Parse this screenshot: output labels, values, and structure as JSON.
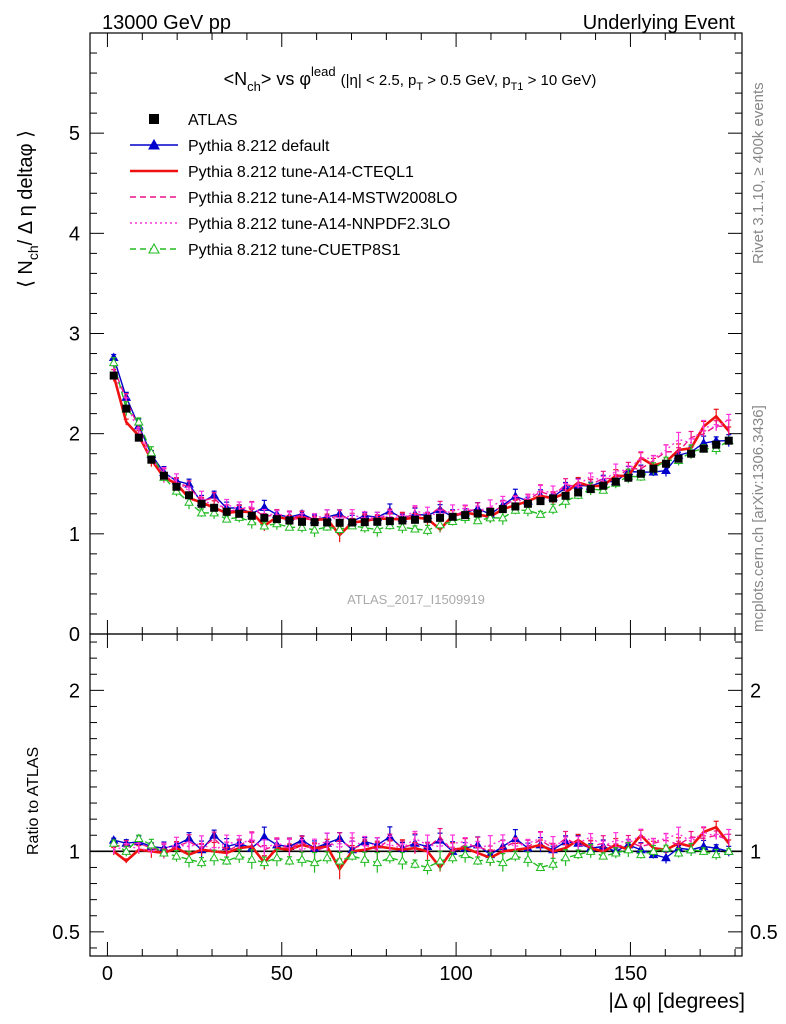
{
  "header": {
    "left": "13000 GeV pp",
    "right": "Underlying Event"
  },
  "side_text": {
    "rivet": "Rivet 3.1.10, ≥ 400k events",
    "mcplots": "mcplots.cern.ch [arXiv:1306.3436]"
  },
  "chart_data": [
    {
      "type": "line",
      "title": "<N_ch> vs φ^lead (|η| < 2.5, p_T > 0.5 GeV, p_T1 > 10 GeV)",
      "title_parts": {
        "main_a": "<N",
        "main_sub": "ch",
        "main_b": "> vs φ",
        "main_sup": "lead",
        "cuts_a": "(|η| < 2.5, p",
        "cuts_sub1": "T",
        "cuts_b": " > 0.5 GeV, p",
        "cuts_sub2": "T1",
        "cuts_c": " > 10 GeV)"
      },
      "ylabel": "⟨ N_ch / Δη deltaφ ⟩",
      "ylabel_parts": {
        "a": "⟨ N",
        "sub": "ch",
        "b": "/ Δ η deltaφ ⟩"
      },
      "watermark": "ATLAS_2017_I1509919",
      "xlim": [
        -5,
        182
      ],
      "ylim": [
        0,
        6
      ],
      "yticks": [
        0,
        1,
        2,
        3,
        4,
        5
      ],
      "legend_position": "top-left",
      "series": [
        {
          "name": "ATLAS",
          "color": "#000000",
          "style": "markers-square"
        },
        {
          "name": "Pythia 8.212 default",
          "color": "#0000cc",
          "style": "line-triangle"
        },
        {
          "name": "Pythia 8.212 tune-A14-CTEQL1",
          "color": "#ee1111",
          "style": "solid-thick"
        },
        {
          "name": "Pythia 8.212 tune-A14-MSTW2008LO",
          "color": "#ee1188",
          "style": "dashed"
        },
        {
          "name": "Pythia 8.212 tune-A14-NNPDF2.3LO",
          "color": "#ff33dd",
          "style": "dotted"
        },
        {
          "name": "Pythia 8.212 tune-CUETP8S1",
          "color": "#22bb22",
          "style": "dashed-open-triangle"
        }
      ],
      "x": [
        1.8,
        5.4,
        9.0,
        12.6,
        16.2,
        19.8,
        23.4,
        27.0,
        30.6,
        34.2,
        37.8,
        41.4,
        45.0,
        48.6,
        52.2,
        55.8,
        59.4,
        63.0,
        66.6,
        70.2,
        73.8,
        77.4,
        81.0,
        84.6,
        88.2,
        91.8,
        95.4,
        99.0,
        102.6,
        106.2,
        109.8,
        113.4,
        117.0,
        120.6,
        124.2,
        127.8,
        131.4,
        135.0,
        138.6,
        142.2,
        145.8,
        149.4,
        153.0,
        156.6,
        160.2,
        163.8,
        167.4,
        171.0,
        174.6,
        178.2
      ],
      "anchors": {
        "x": [
          1.8,
          5.4,
          9,
          12.6,
          16.2,
          19.8,
          27,
          34.2,
          45,
          55.8,
          66.6,
          77.4,
          88.2,
          99,
          109.8,
          120.6,
          131.4,
          142.2,
          153,
          163.8,
          171,
          178.2
        ],
        "atlas": [
          2.58,
          2.25,
          1.96,
          1.74,
          1.58,
          1.47,
          1.3,
          1.22,
          1.16,
          1.12,
          1.11,
          1.12,
          1.14,
          1.17,
          1.22,
          1.3,
          1.38,
          1.48,
          1.6,
          1.75,
          1.85,
          1.93
        ]
      },
      "ratio_pattern": {
        "Pythia 8.212 default": [
          1.07,
          1.05,
          1.06,
          1.03,
          1.02,
          1.04,
          1.08,
          1.01,
          1.1,
          1.03,
          1.05,
          1.02,
          1.09,
          1.04,
          1.03,
          1.07,
          1.02,
          1.05,
          1.08,
          1.01,
          1.06,
          1.04,
          1.09,
          1.02,
          1.05,
          1.03,
          1.07,
          1.0,
          1.02,
          1.04,
          0.98,
          1.03,
          1.08,
          1.02,
          1.04,
          1.01,
          1.06,
          1.05,
          1.02,
          1.03,
          1.0,
          1.04,
          1.01,
          0.98,
          0.96,
          1.02,
          1.01,
          1.03,
          1.02,
          1.0
        ],
        "Pythia 8.212 tune-A14-CTEQL1": [
          1.0,
          0.94,
          1.01,
          1.0,
          0.99,
          1.02,
          0.98,
          1.01,
          1.0,
          0.99,
          1.02,
          1.03,
          0.93,
          1.02,
          1.01,
          1.04,
          1.02,
          1.03,
          0.89,
          1.0,
          1.01,
          1.03,
          1.02,
          1.01,
          1.02,
          1.0,
          0.9,
          1.01,
          1.02,
          0.99,
          0.96,
          1.0,
          1.01,
          1.02,
          1.04,
          1.0,
          1.02,
          1.07,
          1.02,
          1.0,
          1.04,
          1.01,
          1.1,
          1.02,
          1.01,
          1.05,
          1.03,
          1.12,
          1.15,
          1.05
        ],
        "Pythia 8.212 tune-A14-MSTW2008LO": [
          1.03,
          1.04,
          1.05,
          1.02,
          1.0,
          1.03,
          1.06,
          1.02,
          1.08,
          1.0,
          1.04,
          1.07,
          1.01,
          1.04,
          1.02,
          1.06,
          1.0,
          1.03,
          1.07,
          1.02,
          1.04,
          1.01,
          1.08,
          1.02,
          1.05,
          1.02,
          1.09,
          1.0,
          1.04,
          1.03,
          1.0,
          1.02,
          1.06,
          1.03,
          1.07,
          1.02,
          1.08,
          1.04,
          1.03,
          1.05,
          1.02,
          1.06,
          1.03,
          1.05,
          1.07,
          1.04,
          1.09,
          1.08,
          1.1,
          1.07
        ],
        "Pythia 8.212 tune-A14-NNPDF2.3LO": [
          1.01,
          1.03,
          1.02,
          1.0,
          1.02,
          1.04,
          1.03,
          1.05,
          1.0,
          1.06,
          1.04,
          1.08,
          1.02,
          1.05,
          1.03,
          1.01,
          1.04,
          1.06,
          1.02,
          1.07,
          1.03,
          1.05,
          1.04,
          1.02,
          1.08,
          1.04,
          1.03,
          1.05,
          1.06,
          1.02,
          1.04,
          1.07,
          1.03,
          1.05,
          1.08,
          1.04,
          1.06,
          1.05,
          1.09,
          1.03,
          1.07,
          1.05,
          1.1,
          1.06,
          1.08,
          1.11,
          1.06,
          1.12,
          1.09,
          1.11
        ],
        "Pythia 8.212 tune-CUETP8S1": [
          1.05,
          1.0,
          1.08,
          1.04,
          0.99,
          0.97,
          0.95,
          0.93,
          0.96,
          0.94,
          0.97,
          0.95,
          0.93,
          0.96,
          0.94,
          0.95,
          0.93,
          0.96,
          0.94,
          0.97,
          0.95,
          0.93,
          0.96,
          0.94,
          0.92,
          0.9,
          0.94,
          0.96,
          0.98,
          0.94,
          0.95,
          0.93,
          0.97,
          0.95,
          0.9,
          0.92,
          0.96,
          0.98,
          1.0,
          0.97,
          0.99,
          1.01,
          0.98,
          1.0,
          1.02,
          0.99,
          1.01,
          1.0,
          0.98,
          1.0
        ]
      }
    },
    {
      "type": "line",
      "ylabel": "Ratio to ATLAS",
      "xlabel": "|Δ φ| [degrees]",
      "xlim": [
        -5,
        182
      ],
      "xticks": [
        0,
        50,
        100,
        150
      ],
      "ylim": [
        0.35,
        2.35
      ],
      "yticks": [
        0.5,
        1,
        2
      ],
      "yticklabels": [
        "0.5",
        "1",
        "2"
      ]
    }
  ]
}
